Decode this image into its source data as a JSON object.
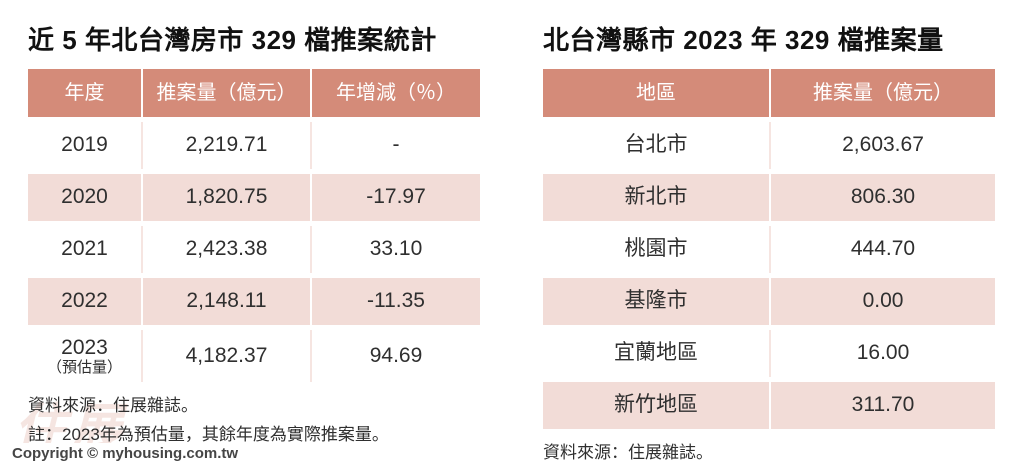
{
  "page": {
    "copyright": "Copyright © myhousing.com.tw",
    "watermark_text": "住展"
  },
  "colors": {
    "header_bg": "#d48b79",
    "row_alt_bg": "#f2dcd7",
    "header_text": "#ffffff",
    "body_text": "#2f2f2f",
    "title_text": "#111111",
    "watermark": "#d48b79"
  },
  "chart_data": [
    {
      "type": "table",
      "title": "近 5 年北台灣房市 329 檔推案統計",
      "columns": [
        "年度",
        "推案量（億元）",
        "年增減（％）"
      ],
      "rows": [
        {
          "cells": [
            "2019",
            "2,219.71",
            "-"
          ]
        },
        {
          "cells": [
            "2020",
            "1,820.75",
            "-17.97"
          ]
        },
        {
          "cells": [
            "2021",
            "2,423.38",
            "33.10"
          ]
        },
        {
          "cells": [
            "2022",
            "2,148.11",
            "-11.35"
          ]
        },
        {
          "cells": [
            "2023",
            "4,182.37",
            "94.69"
          ],
          "label_note": "（預估量）"
        }
      ],
      "source": "資料來源：住展雜誌。",
      "note": "註：2023年為預估量，其餘年度為實際推案量。",
      "numeric": {
        "years": [
          2019,
          2020,
          2021,
          2022,
          2023
        ],
        "volume_billion_ntd": [
          2219.71,
          1820.75,
          2423.38,
          2148.11,
          4182.37
        ],
        "yoy_change_pct": [
          null,
          -17.97,
          33.1,
          -11.35,
          94.69
        ],
        "note_2023": "estimate"
      }
    },
    {
      "type": "table",
      "title": "北台灣縣市 2023 年 329 檔推案量",
      "columns": [
        "地區",
        "推案量（億元）"
      ],
      "rows": [
        {
          "cells": [
            "台北市",
            "2,603.67"
          ]
        },
        {
          "cells": [
            "新北市",
            "806.30"
          ]
        },
        {
          "cells": [
            "桃園市",
            "444.70"
          ]
        },
        {
          "cells": [
            "基隆市",
            "0.00"
          ]
        },
        {
          "cells": [
            "宜蘭地區",
            "16.00"
          ]
        },
        {
          "cells": [
            "新竹地區",
            "311.70"
          ]
        }
      ],
      "source": "資料來源：住展雜誌。",
      "numeric": {
        "regions": [
          "台北市",
          "新北市",
          "桃園市",
          "基隆市",
          "宜蘭地區",
          "新竹地區"
        ],
        "volume_billion_ntd": [
          2603.67,
          806.3,
          444.7,
          0.0,
          16.0,
          311.7
        ]
      }
    }
  ]
}
